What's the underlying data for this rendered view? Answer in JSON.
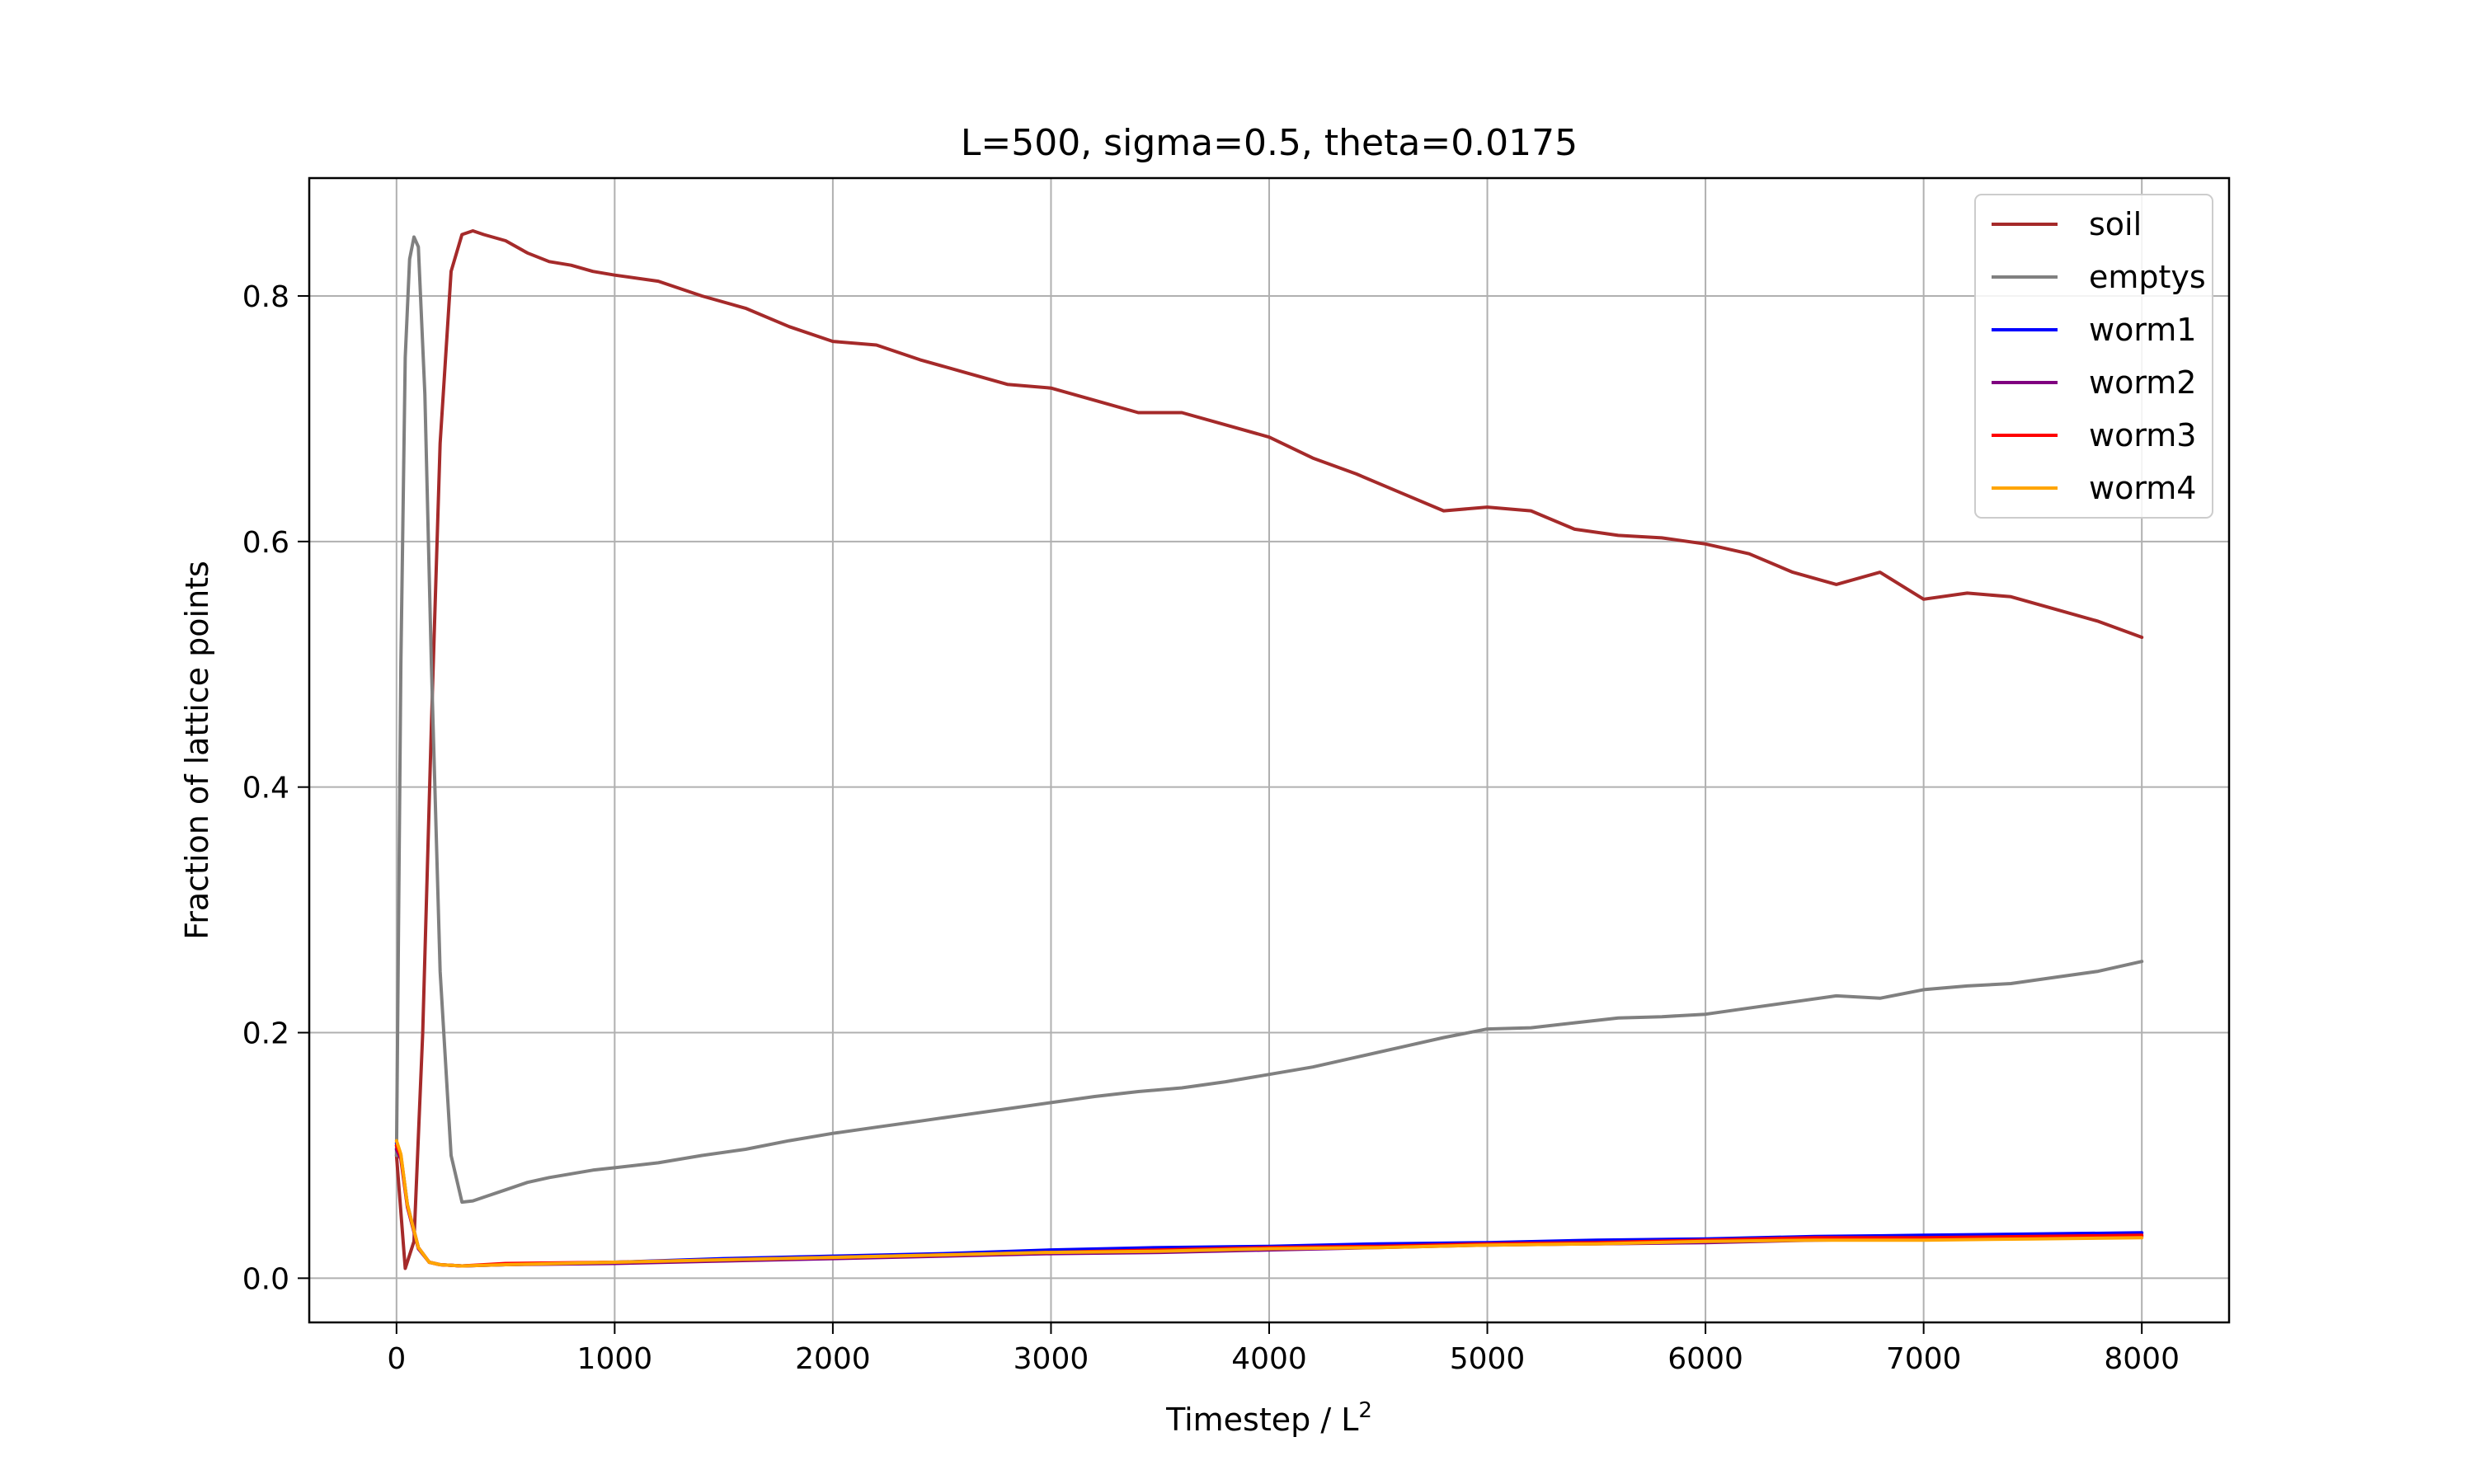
{
  "chart_data": {
    "type": "line",
    "title": "L=500, sigma=0.5, theta=0.0175",
    "xlabel": "Timestep / L",
    "xlabel_sup": "2",
    "ylabel": "Fraction of lattice points",
    "xlim": [
      -400,
      8400
    ],
    "ylim": [
      -0.036,
      0.896
    ],
    "xticks": [
      0,
      1000,
      2000,
      3000,
      4000,
      5000,
      6000,
      7000,
      8000
    ],
    "xtick_labels": [
      "0",
      "1000",
      "2000",
      "3000",
      "4000",
      "5000",
      "6000",
      "7000",
      "8000"
    ],
    "yticks": [
      0.0,
      0.2,
      0.4,
      0.6,
      0.8
    ],
    "ytick_labels": [
      "0.0",
      "0.2",
      "0.4",
      "0.6",
      "0.8"
    ],
    "grid": true,
    "legend_position": "top-right",
    "series": [
      {
        "name": "soil",
        "color": "#a52a2a",
        "x": [
          0,
          40,
          80,
          120,
          160,
          200,
          250,
          300,
          350,
          400,
          500,
          600,
          700,
          800,
          900,
          1000,
          1200,
          1400,
          1600,
          1800,
          2000,
          2200,
          2400,
          2600,
          2800,
          3000,
          3200,
          3400,
          3600,
          3800,
          4000,
          4200,
          4400,
          4600,
          4800,
          5000,
          5200,
          5400,
          5600,
          5800,
          6000,
          6200,
          6400,
          6600,
          6800,
          7000,
          7200,
          7400,
          7600,
          7800,
          8000
        ],
        "y": [
          0.1,
          0.008,
          0.03,
          0.2,
          0.45,
          0.68,
          0.82,
          0.85,
          0.853,
          0.85,
          0.845,
          0.835,
          0.828,
          0.825,
          0.82,
          0.817,
          0.812,
          0.8,
          0.79,
          0.775,
          0.763,
          0.76,
          0.748,
          0.738,
          0.728,
          0.725,
          0.715,
          0.705,
          0.705,
          0.695,
          0.685,
          0.668,
          0.655,
          0.64,
          0.625,
          0.628,
          0.625,
          0.61,
          0.605,
          0.603,
          0.598,
          0.59,
          0.575,
          0.565,
          0.575,
          0.553,
          0.558,
          0.555,
          0.545,
          0.535,
          0.522
        ]
      },
      {
        "name": "emptys",
        "color": "#808080",
        "x": [
          0,
          20,
          40,
          60,
          80,
          100,
          130,
          160,
          200,
          250,
          300,
          350,
          400,
          500,
          600,
          700,
          800,
          900,
          1000,
          1200,
          1400,
          1600,
          1800,
          2000,
          2200,
          2400,
          2600,
          2800,
          3000,
          3200,
          3400,
          3600,
          3800,
          4000,
          4200,
          4400,
          4600,
          4800,
          5000,
          5200,
          5400,
          5600,
          5800,
          6000,
          6200,
          6400,
          6600,
          6800,
          7000,
          7200,
          7400,
          7600,
          7800,
          8000
        ],
        "y": [
          0.1,
          0.5,
          0.75,
          0.83,
          0.848,
          0.84,
          0.72,
          0.5,
          0.25,
          0.1,
          0.062,
          0.063,
          0.066,
          0.072,
          0.078,
          0.082,
          0.085,
          0.088,
          0.09,
          0.094,
          0.1,
          0.105,
          0.112,
          0.118,
          0.123,
          0.128,
          0.133,
          0.138,
          0.143,
          0.148,
          0.152,
          0.155,
          0.16,
          0.166,
          0.172,
          0.18,
          0.188,
          0.196,
          0.203,
          0.204,
          0.208,
          0.212,
          0.213,
          0.215,
          0.22,
          0.225,
          0.23,
          0.228,
          0.235,
          0.238,
          0.24,
          0.245,
          0.25,
          0.258
        ]
      },
      {
        "name": "worm1",
        "color": "#0000ff",
        "x": [
          0,
          20,
          50,
          100,
          150,
          200,
          300,
          500,
          1000,
          1500,
          2000,
          2500,
          3000,
          3500,
          4000,
          4500,
          5000,
          5500,
          6000,
          6500,
          7000,
          7500,
          8000
        ],
        "y": [
          0.11,
          0.1,
          0.06,
          0.025,
          0.013,
          0.011,
          0.01,
          0.011,
          0.013,
          0.016,
          0.018,
          0.02,
          0.023,
          0.025,
          0.026,
          0.028,
          0.029,
          0.031,
          0.032,
          0.034,
          0.035,
          0.036,
          0.037
        ]
      },
      {
        "name": "worm2",
        "color": "#800080",
        "x": [
          0,
          20,
          50,
          100,
          150,
          200,
          300,
          500,
          1000,
          1500,
          2000,
          2500,
          3000,
          3500,
          4000,
          4500,
          5000,
          5500,
          6000,
          6500,
          7000,
          7500,
          8000
        ],
        "y": [
          0.105,
          0.097,
          0.058,
          0.024,
          0.013,
          0.011,
          0.01,
          0.011,
          0.012,
          0.014,
          0.016,
          0.018,
          0.02,
          0.021,
          0.023,
          0.025,
          0.027,
          0.028,
          0.029,
          0.031,
          0.032,
          0.033,
          0.034
        ]
      },
      {
        "name": "worm3",
        "color": "#ff0000",
        "x": [
          0,
          20,
          50,
          100,
          150,
          200,
          300,
          500,
          1000,
          1500,
          2000,
          2500,
          3000,
          3500,
          4000,
          4500,
          5000,
          5500,
          6000,
          6500,
          7000,
          7500,
          8000
        ],
        "y": [
          0.108,
          0.099,
          0.059,
          0.025,
          0.013,
          0.011,
          0.01,
          0.012,
          0.013,
          0.015,
          0.017,
          0.019,
          0.021,
          0.023,
          0.025,
          0.026,
          0.028,
          0.029,
          0.031,
          0.033,
          0.033,
          0.034,
          0.035
        ]
      },
      {
        "name": "worm4",
        "color": "#ffa500",
        "x": [
          0,
          20,
          50,
          100,
          150,
          200,
          300,
          500,
          1000,
          1500,
          2000,
          2500,
          3000,
          3500,
          4000,
          4500,
          5000,
          5500,
          6000,
          6500,
          7000,
          7500,
          8000
        ],
        "y": [
          0.112,
          0.101,
          0.06,
          0.025,
          0.013,
          0.011,
          0.01,
          0.011,
          0.013,
          0.015,
          0.017,
          0.019,
          0.021,
          0.022,
          0.024,
          0.025,
          0.027,
          0.028,
          0.03,
          0.031,
          0.031,
          0.032,
          0.033
        ]
      }
    ]
  }
}
